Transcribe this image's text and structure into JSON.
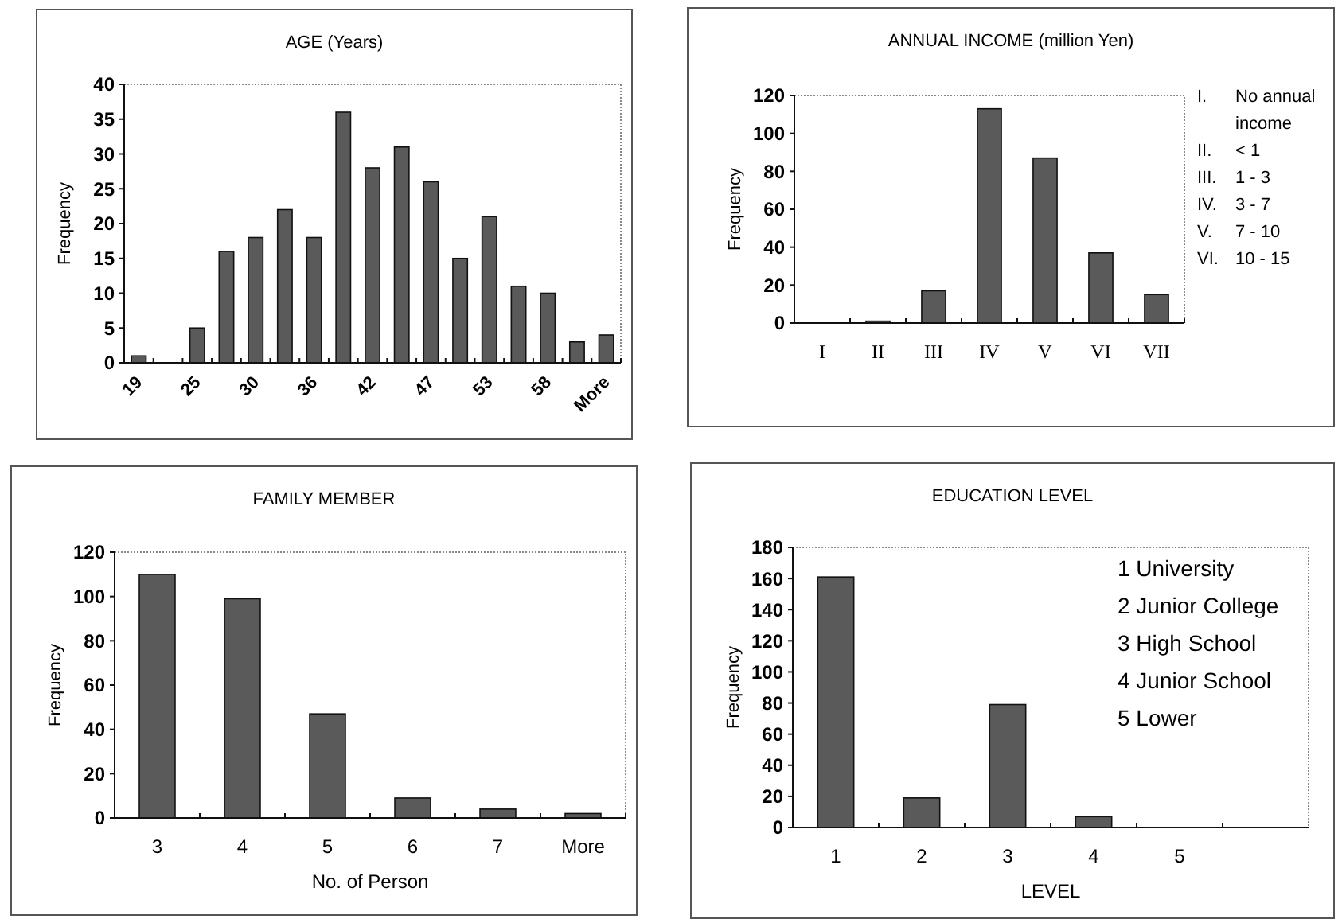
{
  "chart_data": [
    {
      "type": "bar",
      "title": "AGE (Years)",
      "ylabel": "Frequency",
      "categories": [
        "19",
        null,
        "25",
        null,
        "30",
        null,
        "36",
        null,
        "42",
        null,
        "47",
        null,
        "53",
        null,
        "58",
        null,
        "More"
      ],
      "values": [
        1,
        0,
        5,
        16,
        18,
        22,
        18,
        36,
        28,
        31,
        26,
        15,
        21,
        11,
        10,
        3,
        4
      ],
      "color": "#5a5a5a",
      "ylim": [
        0,
        40
      ],
      "yticks": [
        0,
        5,
        10,
        15,
        20,
        25,
        30,
        35,
        40
      ]
    },
    {
      "type": "bar",
      "title": "ANNUAL INCOME (million Yen)",
      "ylabel": "Frequency",
      "categories": [
        "I",
        "II",
        "III",
        "IV",
        "V",
        "VI",
        "VII"
      ],
      "values": [
        0,
        1,
        17,
        113,
        87,
        37,
        15
      ],
      "color": "#5a5a5a",
      "ylim": [
        0,
        120
      ],
      "yticks": [
        0,
        20,
        40,
        60,
        80,
        100,
        120
      ],
      "annotations": [
        "I. No annual income",
        "II. < 1",
        "III. 1 - 3",
        "IV. 3 - 7",
        "V. 7 - 10",
        "VI. 10 - 15"
      ]
    },
    {
      "type": "bar",
      "title": "FAMILY MEMBER",
      "ylabel": "Frequency",
      "xlabel": "No. of Person",
      "categories": [
        "3",
        "4",
        "5",
        "6",
        "7",
        "More"
      ],
      "values": [
        110,
        99,
        47,
        9,
        4,
        2
      ],
      "color": "#5a5a5a",
      "ylim": [
        0,
        120
      ],
      "yticks": [
        0,
        20,
        40,
        60,
        80,
        100,
        120
      ]
    },
    {
      "type": "bar",
      "title": "EDUCATION LEVEL",
      "ylabel": "Frequency",
      "xlabel": "LEVEL",
      "categories": [
        "1",
        "2",
        "3",
        "4",
        "5"
      ],
      "values": [
        161,
        19,
        79,
        7,
        0
      ],
      "color": "#5a5a5a",
      "ylim": [
        0,
        180
      ],
      "yticks": [
        0,
        20,
        40,
        60,
        80,
        100,
        120,
        140,
        160,
        180
      ],
      "annotations": [
        "1 University",
        "2 Junior College",
        "3 High School",
        "4 Junior School",
        "5  Lower"
      ]
    }
  ]
}
